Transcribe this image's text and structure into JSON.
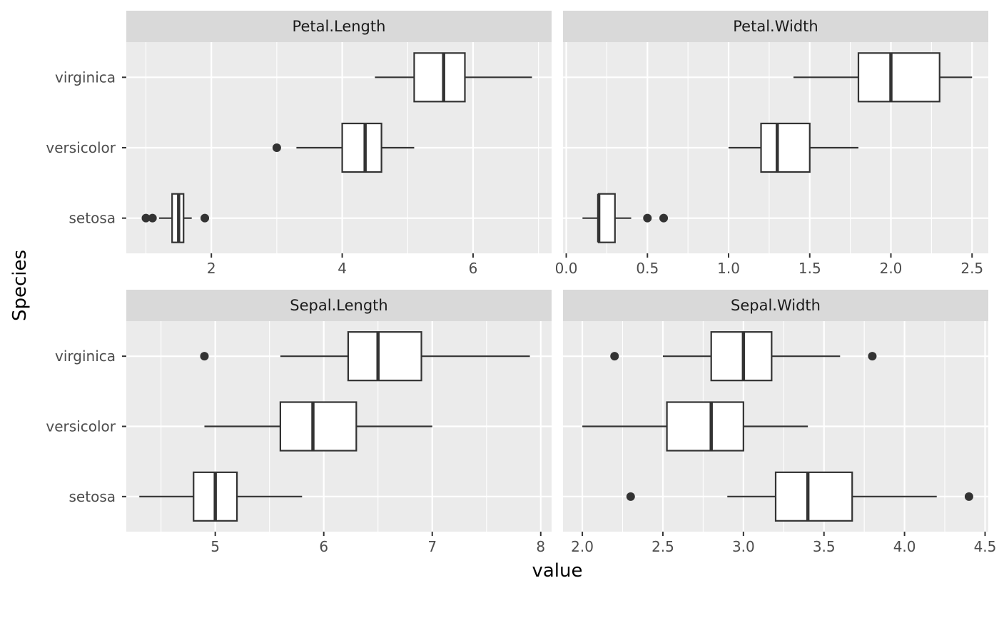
{
  "colors": {
    "panel_background": "#EBEBEB",
    "strip_background": "#D9D9D9",
    "grid_major": "#FFFFFF",
    "box_fill": "#FFFFFF",
    "box_line": "#333333",
    "outlier": "#333333",
    "tick_text": "#4D4D4D"
  },
  "chart_data": {
    "type": "boxplot",
    "layout": "facet grid 2x2, horizontal boxplots, free x scales",
    "xlabel": "value",
    "ylabel": "Species",
    "categories": [
      "setosa",
      "versicolor",
      "virginica"
    ],
    "grid": true,
    "legend": "none",
    "panels": [
      {
        "title": "Petal.Length",
        "xlim": [
          0.7,
          7.2
        ],
        "xticks": [
          2,
          4,
          6
        ],
        "xtick_labels": [
          "2",
          "4",
          "6"
        ],
        "minor_ticks": [
          1,
          3,
          5,
          7
        ],
        "boxes": [
          {
            "category": "setosa",
            "lower_whisker": 1.2,
            "q1": 1.4,
            "median": 1.5,
            "q3": 1.575,
            "upper_whisker": 1.7,
            "outliers": [
              1.0,
              1.1,
              1.9
            ]
          },
          {
            "category": "versicolor",
            "lower_whisker": 3.3,
            "q1": 4.0,
            "median": 4.35,
            "q3": 4.6,
            "upper_whisker": 5.1,
            "outliers": [
              3.0
            ]
          },
          {
            "category": "virginica",
            "lower_whisker": 4.5,
            "q1": 5.1,
            "median": 5.55,
            "q3": 5.875,
            "upper_whisker": 6.9,
            "outliers": []
          }
        ]
      },
      {
        "title": "Petal.Width",
        "xlim": [
          -0.02,
          2.6
        ],
        "xticks": [
          0.0,
          0.5,
          1.0,
          1.5,
          2.0,
          2.5
        ],
        "xtick_labels": [
          "0.0",
          "0.5",
          "1.0",
          "1.5",
          "2.0",
          "2.5"
        ],
        "minor_ticks": [
          0.25,
          0.75,
          1.25,
          1.75,
          2.25
        ],
        "boxes": [
          {
            "category": "setosa",
            "lower_whisker": 0.1,
            "q1": 0.2,
            "median": 0.2,
            "q3": 0.3,
            "upper_whisker": 0.4,
            "outliers": [
              0.5,
              0.6
            ]
          },
          {
            "category": "versicolor",
            "lower_whisker": 1.0,
            "q1": 1.2,
            "median": 1.3,
            "q3": 1.5,
            "upper_whisker": 1.8,
            "outliers": []
          },
          {
            "category": "virginica",
            "lower_whisker": 1.4,
            "q1": 1.8,
            "median": 2.0,
            "q3": 2.3,
            "upper_whisker": 2.5,
            "outliers": []
          }
        ]
      },
      {
        "title": "Sepal.Length",
        "xlim": [
          4.18,
          8.1
        ],
        "xticks": [
          5,
          6,
          7,
          8
        ],
        "xtick_labels": [
          "5",
          "6",
          "7",
          "8"
        ],
        "minor_ticks": [
          4.5,
          5.5,
          6.5,
          7.5
        ],
        "boxes": [
          {
            "category": "setosa",
            "lower_whisker": 4.3,
            "q1": 4.8,
            "median": 5.0,
            "q3": 5.2,
            "upper_whisker": 5.8,
            "outliers": []
          },
          {
            "category": "versicolor",
            "lower_whisker": 4.9,
            "q1": 5.6,
            "median": 5.9,
            "q3": 6.3,
            "upper_whisker": 7.0,
            "outliers": []
          },
          {
            "category": "virginica",
            "lower_whisker": 5.6,
            "q1": 6.225,
            "median": 6.5,
            "q3": 6.9,
            "upper_whisker": 7.9,
            "outliers": [
              4.9
            ]
          }
        ]
      },
      {
        "title": "Sepal.Width",
        "xlim": [
          1.88,
          4.52
        ],
        "xticks": [
          2.0,
          2.5,
          3.0,
          3.5,
          4.0,
          4.5
        ],
        "xtick_labels": [
          "2.0",
          "2.5",
          "3.0",
          "3.5",
          "4.0",
          "4.5"
        ],
        "minor_ticks": [
          2.25,
          2.75,
          3.25,
          3.75,
          4.25
        ],
        "boxes": [
          {
            "category": "setosa",
            "lower_whisker": 2.9,
            "q1": 3.2,
            "median": 3.4,
            "q3": 3.675,
            "upper_whisker": 4.2,
            "outliers": [
              2.3,
              4.4
            ]
          },
          {
            "category": "versicolor",
            "lower_whisker": 2.0,
            "q1": 2.525,
            "median": 2.8,
            "q3": 3.0,
            "upper_whisker": 3.4,
            "outliers": []
          },
          {
            "category": "virginica",
            "lower_whisker": 2.5,
            "q1": 2.8,
            "median": 3.0,
            "q3": 3.175,
            "upper_whisker": 3.6,
            "outliers": [
              2.2,
              3.8
            ]
          }
        ]
      }
    ]
  }
}
